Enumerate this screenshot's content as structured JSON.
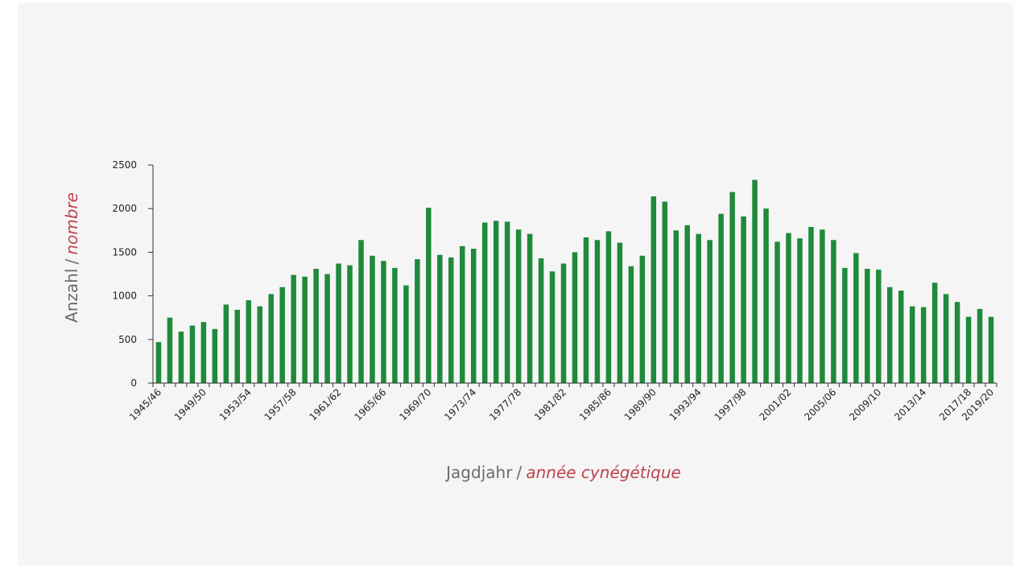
{
  "chart_data": {
    "type": "bar",
    "colors": {
      "bar": "#1f8a3a",
      "axis": "#333333",
      "accent_text": "#c0434f",
      "muted_text": "#6b6b6b",
      "background": "#f5f5f5"
    },
    "xlabel_main": "Jagdjahr",
    "xlabel_sep": "/",
    "xlabel_alt": "année cynégétique",
    "ylabel_main": "Anzahl",
    "ylabel_sep": "/",
    "ylabel_alt": "nombre",
    "ylim": [
      0,
      2500
    ],
    "yticks": [
      0,
      500,
      1000,
      1500,
      2000,
      2500
    ],
    "xtick_labels": [
      "1945/46",
      "1949/50",
      "1953/54",
      "1957/58",
      "1961/62",
      "1965/66",
      "1969/70",
      "1973/74",
      "1977/78",
      "1981/82",
      "1985/86",
      "1989/90",
      "1993/94",
      "1997/98",
      "2001/02",
      "2005/06",
      "2009/10",
      "2013/14",
      "2017/18",
      "2019/20"
    ],
    "xtick_indices": [
      0,
      4,
      8,
      12,
      16,
      20,
      24,
      28,
      32,
      36,
      40,
      44,
      48,
      52,
      56,
      60,
      64,
      68,
      72,
      74
    ],
    "categories": [
      "1945/46",
      "1946/47",
      "1947/48",
      "1948/49",
      "1949/50",
      "1950/51",
      "1951/52",
      "1952/53",
      "1953/54",
      "1954/55",
      "1955/56",
      "1956/57",
      "1957/58",
      "1958/59",
      "1959/60",
      "1960/61",
      "1961/62",
      "1962/63",
      "1963/64",
      "1964/65",
      "1965/66",
      "1966/67",
      "1967/68",
      "1968/69",
      "1969/70",
      "1970/71",
      "1971/72",
      "1972/73",
      "1973/74",
      "1974/75",
      "1975/76",
      "1976/77",
      "1977/78",
      "1978/79",
      "1979/80",
      "1980/81",
      "1981/82",
      "1982/83",
      "1983/84",
      "1984/85",
      "1985/86",
      "1986/87",
      "1987/88",
      "1988/89",
      "1989/90",
      "1990/91",
      "1991/92",
      "1992/93",
      "1993/94",
      "1994/95",
      "1995/96",
      "1996/97",
      "1997/98",
      "1998/99",
      "1999/00",
      "2000/01",
      "2001/02",
      "2002/03",
      "2003/04",
      "2004/05",
      "2005/06",
      "2006/07",
      "2007/08",
      "2008/09",
      "2009/10",
      "2010/11",
      "2011/12",
      "2012/13",
      "2013/14",
      "2014/15",
      "2015/16",
      "2016/17",
      "2017/18",
      "2018/19",
      "2019/20"
    ],
    "values": [
      470,
      750,
      590,
      660,
      700,
      620,
      900,
      840,
      950,
      880,
      1020,
      1100,
      1240,
      1220,
      1310,
      1250,
      1370,
      1350,
      1640,
      1460,
      1400,
      1320,
      1120,
      1420,
      2010,
      1470,
      1440,
      1570,
      1540,
      1840,
      1860,
      1850,
      1760,
      1710,
      1430,
      1280,
      1370,
      1500,
      1670,
      1640,
      1740,
      1610,
      1340,
      1460,
      2140,
      2080,
      1750,
      1810,
      1710,
      1640,
      1940,
      2190,
      1910,
      2330,
      2000,
      1620,
      1720,
      1660,
      1790,
      1760,
      1640,
      1320,
      1490,
      1310,
      1300,
      1100,
      1060,
      880,
      870,
      1150,
      1020,
      930,
      760,
      850,
      760
    ]
  }
}
